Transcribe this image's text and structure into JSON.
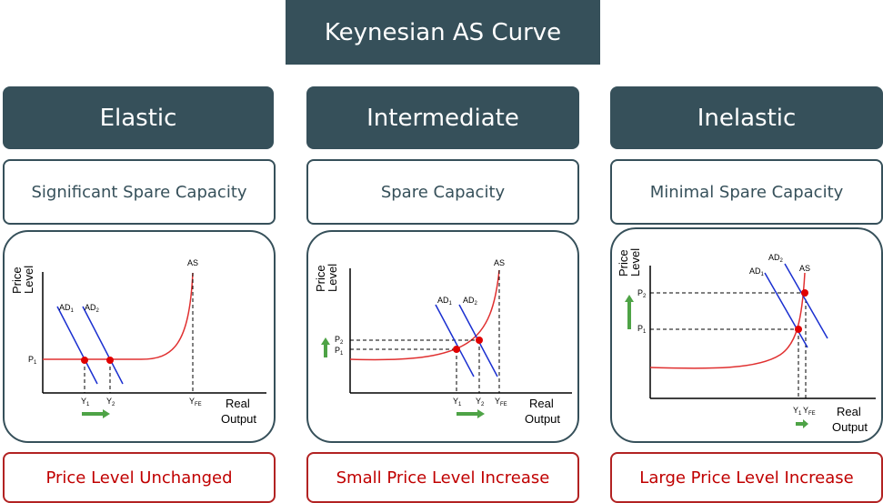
{
  "title": "Keynesian AS Curve",
  "columns": [
    {
      "heading": "Elastic",
      "subheading": "Significant Spare Capacity",
      "result": "Price Level Unchanged",
      "graph": {
        "y_axis_label_1": "Price",
        "y_axis_label_2": "Level",
        "x_axis_label_1": "Real",
        "x_axis_label_2": "Output",
        "as_label": "AS",
        "ad1_label": "AD",
        "ad1_sub": "1",
        "ad2_label": "AD",
        "ad2_sub": "2",
        "p1_label": "P",
        "p1_sub": "1",
        "y1_label": "Y",
        "y1_sub": "1",
        "y2_label": "Y",
        "y2_sub": "2",
        "yfe_label": "Y",
        "yfe_sub": "FE"
      }
    },
    {
      "heading": "Intermediate",
      "subheading": "Spare Capacity",
      "result": "Small Price Level Increase",
      "graph": {
        "y_axis_label_1": "Price",
        "y_axis_label_2": "Level",
        "x_axis_label_1": "Real",
        "x_axis_label_2": "Output",
        "as_label": "AS",
        "ad1_label": "AD",
        "ad1_sub": "1",
        "ad2_label": "AD",
        "ad2_sub": "2",
        "p1_label": "P",
        "p1_sub": "1",
        "p2_label": "P",
        "p2_sub": "2",
        "y1_label": "Y",
        "y1_sub": "1",
        "y2_label": "Y",
        "y2_sub": "2",
        "yfe_label": "Y",
        "yfe_sub": "FE"
      }
    },
    {
      "heading": "Inelastic",
      "subheading": "Minimal Spare Capacity",
      "result": "Large Price Level Increase",
      "graph": {
        "y_axis_label_1": "Price",
        "y_axis_label_2": "Level",
        "x_axis_label_1": "Real",
        "x_axis_label_2": "Output",
        "as_label": "AS",
        "ad1_label": "AD",
        "ad1_sub": "1",
        "ad2_label": "AD",
        "ad2_sub": "2",
        "p1_label": "P",
        "p1_sub": "1",
        "p2_label": "P",
        "p2_sub": "2",
        "y1_label": "Y",
        "y1_sub": "1",
        "yfe_label": "Y",
        "yfe_sub": "FE"
      }
    }
  ],
  "colors": {
    "header_bg": "#36505a",
    "as_curve": "#e03030",
    "ad_curve": "#1a2fd0",
    "equilibrium_point": "#e00000",
    "arrow": "#4ea346",
    "result_text": "#c00000"
  }
}
